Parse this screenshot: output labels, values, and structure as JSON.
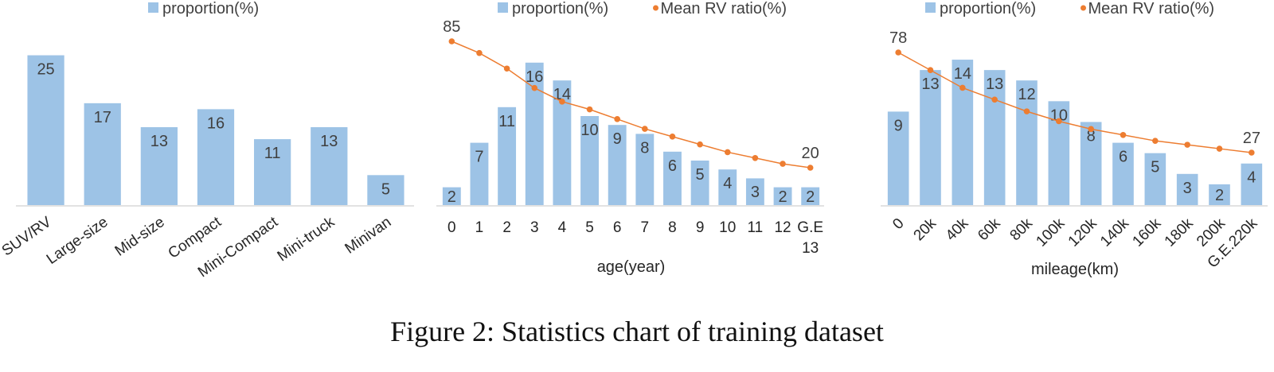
{
  "caption": "Figure 2: Statistics chart of training dataset",
  "colors": {
    "bar": "#9dc3e6",
    "line": "#ed7d31",
    "axis": "#d9d9d9",
    "text": "#404040"
  },
  "chart_data": [
    {
      "type": "bar",
      "title": "",
      "xlabel": "",
      "ylabel": "",
      "legend": [
        "proportion(%)"
      ],
      "legend_position": "top-center",
      "grid": false,
      "categories": [
        "SUV/RV",
        "Large-size",
        "Mid-size",
        "Compact",
        "Mini-Compact",
        "Mini-truck",
        "Minivan"
      ],
      "series": [
        {
          "name": "proportion(%)",
          "kind": "bar",
          "values": [
            25,
            17,
            13,
            16,
            11,
            13,
            5
          ],
          "labels": [
            "25",
            "17",
            "13",
            "16",
            "11",
            "13",
            "5"
          ]
        }
      ],
      "ylim": [
        0,
        26
      ]
    },
    {
      "type": "bar",
      "title": "",
      "xlabel": "age(year)",
      "ylabel": "",
      "legend": [
        "proportion(%)",
        "Mean RV ratio(%)"
      ],
      "legend_position": "top-center",
      "grid": false,
      "categories": [
        "0",
        "1",
        "2",
        "3",
        "4",
        "5",
        "6",
        "7",
        "8",
        "9",
        "10",
        "11",
        "12",
        "G.E 13"
      ],
      "series": [
        {
          "name": "proportion(%)",
          "kind": "bar",
          "values": [
            2,
            7,
            11,
            16,
            14,
            10,
            9,
            8,
            6,
            5,
            4,
            3,
            2,
            2
          ],
          "labels": [
            "2",
            "7",
            "11",
            "16",
            "14",
            "10",
            "9",
            "8",
            "6",
            "5",
            "4",
            "3",
            "2",
            "2"
          ]
        },
        {
          "name": "Mean RV ratio(%)",
          "kind": "line",
          "values": [
            85,
            79,
            71,
            61,
            54,
            50,
            45,
            40,
            36,
            32,
            28,
            25,
            22,
            20
          ],
          "end_labels": [
            "85",
            "20"
          ]
        }
      ],
      "ylim": [
        0,
        17.5
      ],
      "y2lim": [
        0,
        90
      ]
    },
    {
      "type": "bar",
      "title": "",
      "xlabel": "mileage(km)",
      "ylabel": "",
      "legend": [
        "proportion(%)",
        "Mean RV ratio(%)"
      ],
      "legend_position": "top-center",
      "grid": false,
      "categories": [
        "0",
        "20k",
        "40k",
        "60k",
        "80k",
        "100k",
        "120k",
        "140k",
        "160k",
        "180k",
        "200k",
        "G.E.220k"
      ],
      "series": [
        {
          "name": "proportion(%)",
          "kind": "bar",
          "values": [
            9,
            13,
            14,
            13,
            12,
            10,
            8,
            6,
            5,
            3,
            2,
            4
          ],
          "labels": [
            "9",
            "13",
            "14",
            "13",
            "12",
            "10",
            "8",
            "6",
            "5",
            "3",
            "2",
            "4"
          ]
        },
        {
          "name": "Mean RV ratio(%)",
          "kind": "line",
          "values": [
            78,
            69,
            60,
            54,
            48,
            43,
            39,
            36,
            33,
            31,
            29,
            27
          ],
          "end_labels": [
            "78",
            "27"
          ]
        }
      ],
      "ylim": [
        0,
        15
      ],
      "y2lim": [
        0,
        85
      ]
    }
  ]
}
